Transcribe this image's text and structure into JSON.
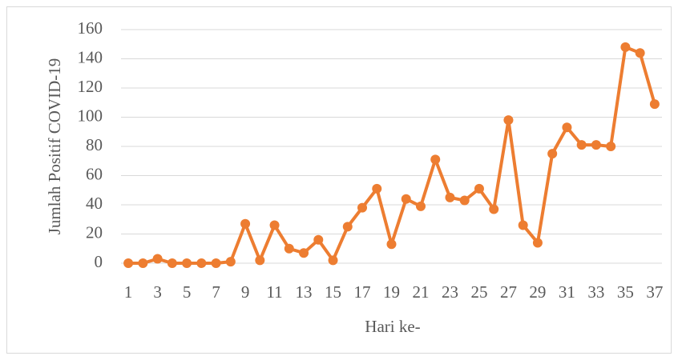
{
  "chart_data": {
    "type": "line",
    "y_label": "Jumlah Positif COVID-19",
    "x_label": "Hari ke-",
    "categories": [
      "1",
      null,
      "3",
      null,
      "5",
      null,
      "7",
      null,
      "9",
      null,
      "11",
      null,
      "13",
      null,
      "15",
      null,
      "17",
      null,
      "19",
      null,
      "21",
      null,
      "23",
      null,
      "25",
      null,
      "27",
      null,
      "29",
      null,
      "31",
      null,
      "33",
      null,
      "35",
      null,
      "37"
    ],
    "series": [
      {
        "name": "Jumlah Positif",
        "color": "#ed7d31",
        "values": [
          0,
          0,
          3,
          0,
          0,
          0,
          0,
          1,
          27,
          2,
          26,
          10,
          7,
          16,
          2,
          25,
          38,
          51,
          13,
          44,
          39,
          71,
          45,
          43,
          51,
          37,
          98,
          26,
          14,
          75,
          93,
          81,
          81,
          80,
          148,
          144,
          109
        ]
      }
    ],
    "ylim": [
      0,
      160
    ],
    "yticks": [
      0,
      20,
      40,
      60,
      80,
      100,
      120,
      140,
      160
    ],
    "grid": true
  }
}
